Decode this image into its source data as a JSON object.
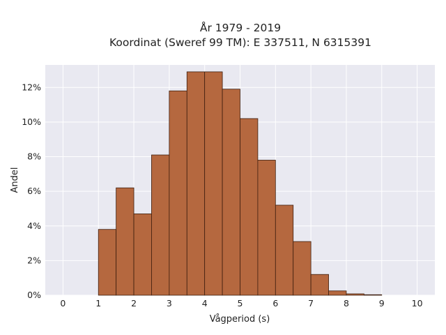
{
  "chart_data": {
    "type": "bar",
    "title_line1": "År 1979 - 2019",
    "title_line2": "Koordinat (Sweref 99 TM): E 337511, N 6315391",
    "xlabel": "Vågperiod (s)",
    "ylabel": "Andel",
    "bin_width": 0.5,
    "xlim": [
      -0.5,
      10.5
    ],
    "ylim": [
      0,
      0.133
    ],
    "x_ticks": [
      0,
      1,
      2,
      3,
      4,
      5,
      6,
      7,
      8,
      9,
      10
    ],
    "x_tick_labels": [
      "0",
      "1",
      "2",
      "3",
      "4",
      "5",
      "6",
      "7",
      "8",
      "9",
      "10"
    ],
    "y_ticks": [
      0,
      0.02,
      0.04,
      0.06,
      0.08,
      0.1,
      0.12
    ],
    "y_tick_labels": [
      "0%",
      "2%",
      "4%",
      "6%",
      "8%",
      "10%",
      "12%"
    ],
    "grid": true,
    "bar_color": "#b5683f",
    "bar_edge_color": "#3d1e0e",
    "plot_background": "#e9e9f1",
    "bins_start": [
      1.0,
      1.5,
      2.0,
      2.5,
      3.0,
      3.5,
      4.0,
      4.5,
      5.0,
      5.5,
      6.0,
      6.5,
      7.0,
      7.5,
      8.0,
      8.5
    ],
    "values": [
      0.038,
      0.062,
      0.047,
      0.081,
      0.118,
      0.129,
      0.129,
      0.119,
      0.102,
      0.078,
      0.052,
      0.031,
      0.012,
      0.0025,
      0.0008,
      0.0003
    ]
  }
}
